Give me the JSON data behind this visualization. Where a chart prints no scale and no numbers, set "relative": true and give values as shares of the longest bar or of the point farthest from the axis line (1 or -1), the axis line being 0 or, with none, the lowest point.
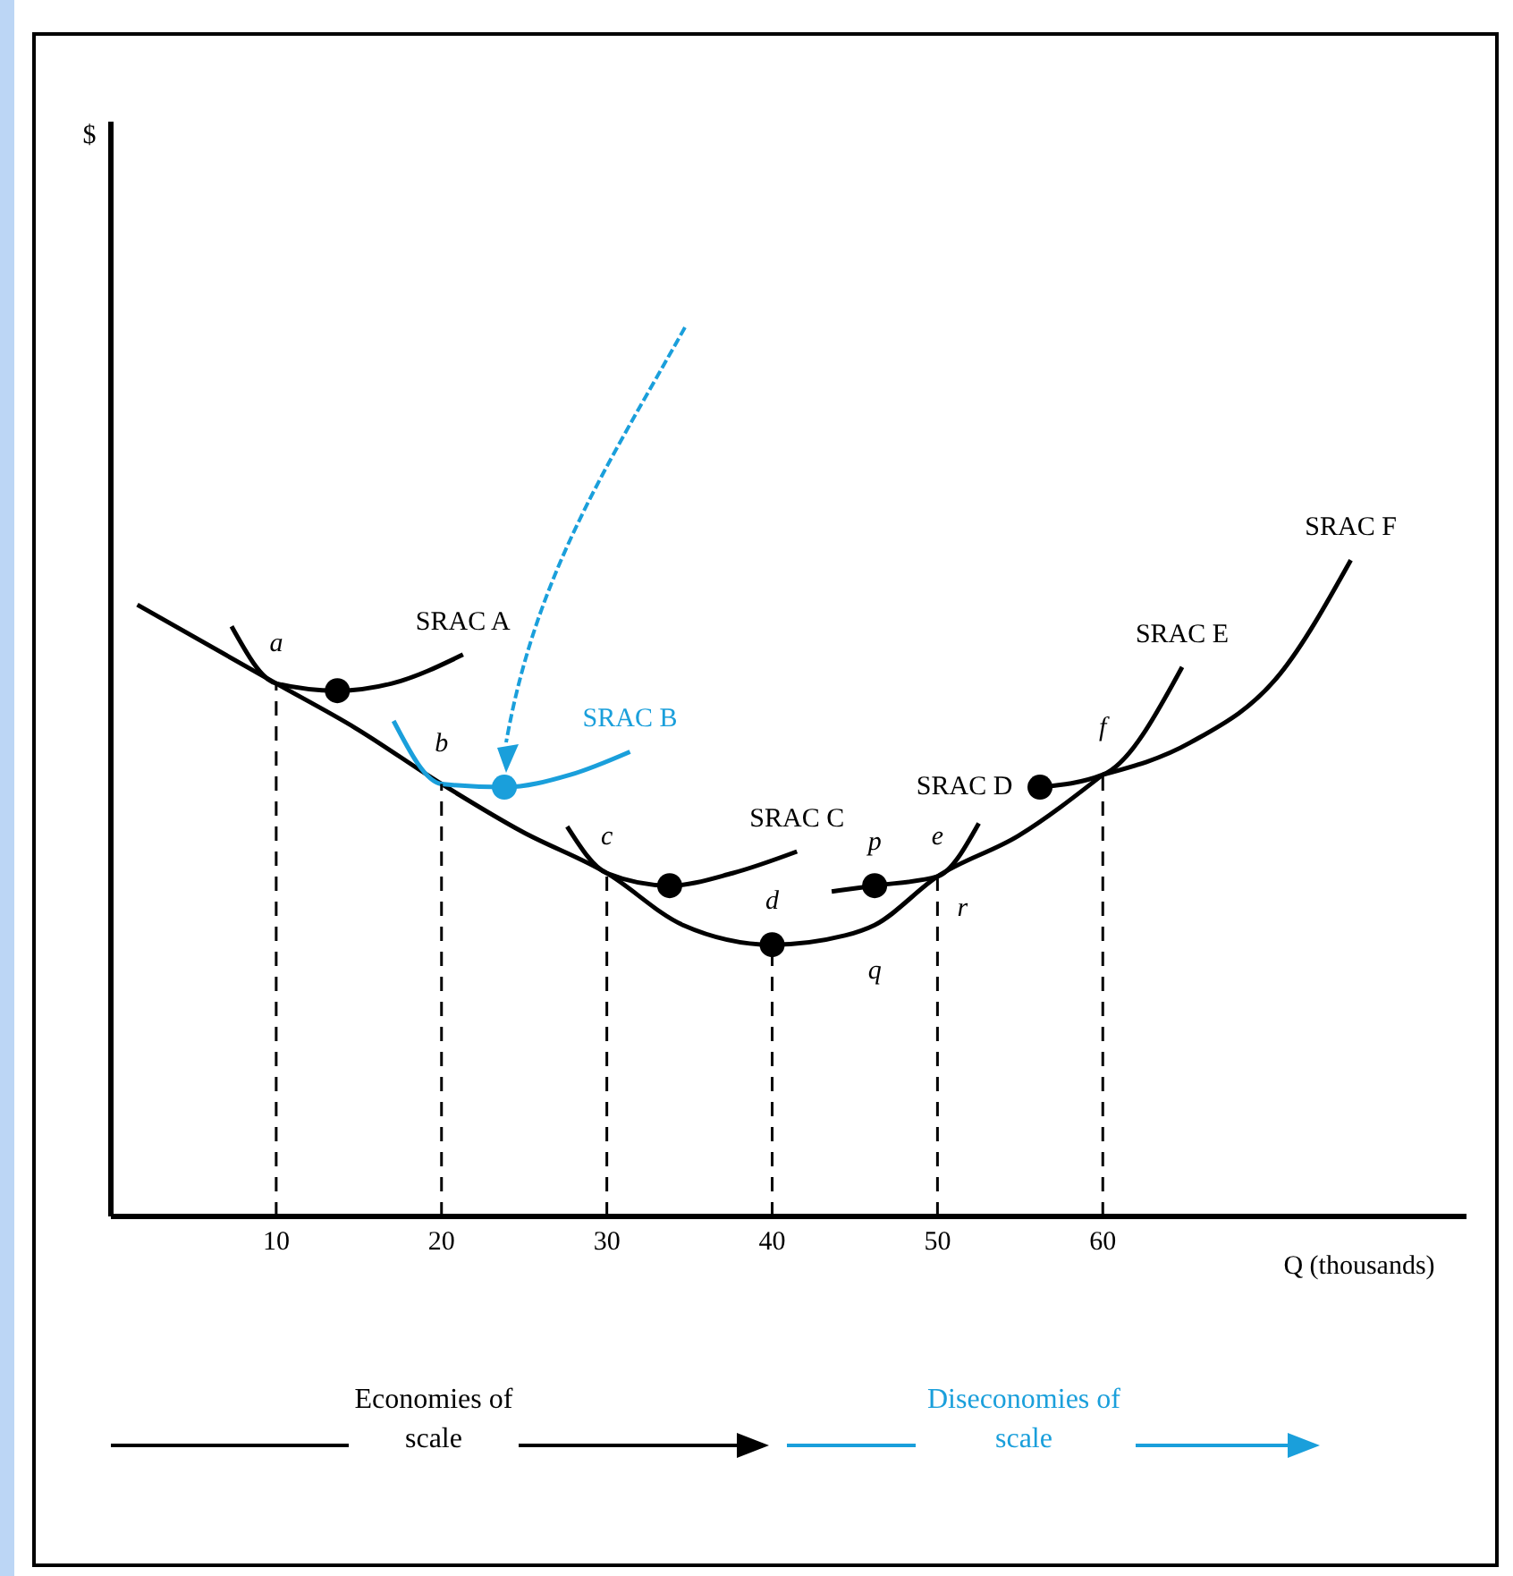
{
  "chart_data": {
    "type": "line",
    "relative": true,
    "xlabel": "Q (thousands)",
    "xlim": [
      0,
      82
    ],
    "xticks": [
      10,
      20,
      30,
      40,
      50,
      60
    ],
    "grid": "x",
    "legend": false,
    "marker": "none",
    "line_style": "solid",
    "series": [
      {
        "x": [
          1.6,
          10,
          14.8,
          20,
          24.9,
          30,
          34.6,
          40,
          44.4,
          46.2,
          50,
          54.9,
          60
        ],
        "values": [
          0.932,
          0.812,
          0.744,
          0.659,
          0.586,
          0.523,
          0.444,
          0.414,
          0.428,
          0.444,
          0.518,
          0.58,
          0.673
        ],
        "color": "#000000"
      },
      {
        "name": "SRAC A",
        "x": [
          7.3,
          10,
          13.7,
          17,
          21.3
        ],
        "values": [
          0.899,
          0.812,
          0.801,
          0.812,
          0.856
        ],
        "color": "#000000"
      },
      {
        "name": "SRAC B",
        "x": [
          17.1,
          20,
          23.8,
          27.8,
          31.4
        ],
        "values": [
          0.755,
          0.659,
          0.654,
          0.673,
          0.708
        ],
        "color": "#1a9fdb"
      },
      {
        "name": "SRAC C",
        "x": [
          27.6,
          30,
          33.8,
          37.6,
          41.5
        ],
        "values": [
          0.594,
          0.523,
          0.504,
          0.523,
          0.556
        ],
        "color": "#000000"
      },
      {
        "name": "SRAC D",
        "x": [
          43.6,
          46.2,
          50,
          52.5
        ],
        "values": [
          0.495,
          0.504,
          0.518,
          0.599
        ],
        "color": "#000000"
      },
      {
        "name": "SRAC E",
        "x": [
          56.2,
          60,
          64.8
        ],
        "values": [
          0.654,
          0.673,
          0.837
        ],
        "color": "#000000"
      },
      {
        "name": "SRAC F",
        "x": [
          60,
          65.3,
          70.7,
          75
        ],
        "values": [
          0.673,
          0.722,
          0.826,
          1
        ],
        "color": "#000000"
      },
      {
        "type": "scatter",
        "marker": "circle",
        "x": [
          13.7,
          23.8,
          33.8,
          40,
          46.2,
          56.2
        ],
        "values": [
          0.801,
          0.654,
          0.504,
          0.414,
          0.504,
          0.654
        ],
        "colors": [
          "#000000",
          "#1a9fdb",
          "#000000",
          "#000000",
          "#000000",
          "#000000"
        ]
      }
    ],
    "annotations": [
      {
        "text": "a",
        "x": 10,
        "y": 0.812
      },
      {
        "text": "b",
        "x": 20,
        "y": 0.659
      },
      {
        "text": "c",
        "x": 30,
        "y": 0.523
      },
      {
        "text": "d",
        "x": 40,
        "y": 0.414
      },
      {
        "text": "p",
        "x": 46.2,
        "y": 0.504
      },
      {
        "text": "q",
        "x": 46.2,
        "y": 0.444
      },
      {
        "text": "e",
        "x": 50,
        "y": 0.518
      },
      {
        "text": "r",
        "x": 50,
        "y": 0.518
      },
      {
        "text": "f",
        "x": 60,
        "y": 0.673
      },
      "$",
      "Economies of scale",
      "Diseconomies of scale"
    ]
  }
}
